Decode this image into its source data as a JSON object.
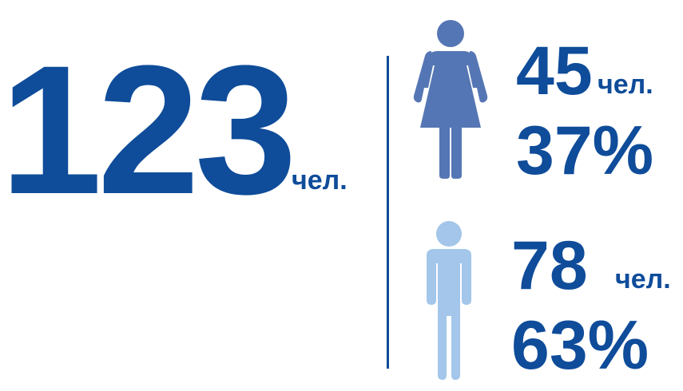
{
  "total": {
    "count": "123",
    "unit": "чел."
  },
  "female": {
    "count": "45",
    "unit": "чел.",
    "percent": "37%",
    "icon": "female-figure-icon",
    "color": "#5576b4"
  },
  "male": {
    "count": "78",
    "unit": "чел.",
    "percent": "63%",
    "icon": "male-figure-icon",
    "color": "#a3c6ea"
  },
  "colors": {
    "primary": "#0f4c9a",
    "divider": "#0f4c9a"
  }
}
